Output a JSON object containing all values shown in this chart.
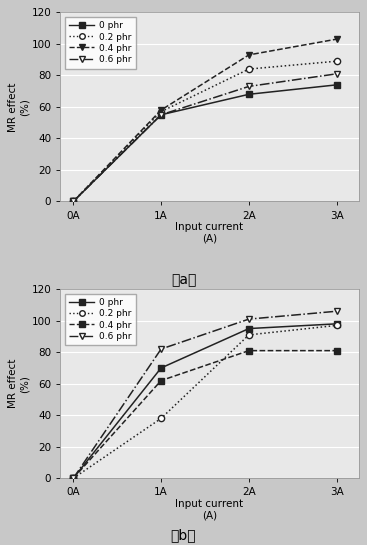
{
  "x_values": [
    0,
    1,
    2,
    3
  ],
  "x_tick_labels": [
    "0A",
    "1A",
    "2A",
    "3A"
  ],
  "ylabel": "MR effect\n(%)",
  "xlabel": "Input current\n(A)",
  "ylim": [
    0,
    120
  ],
  "yticks": [
    0,
    20,
    40,
    60,
    80,
    100,
    120
  ],
  "legend_labels": [
    "0 phr",
    "0.2 phr",
    "0.4 phr",
    "0.6 phr"
  ],
  "plot_bg_color": "#e8e8e8",
  "fig_bg_color": "#c8c8c8",
  "subplot_labels": [
    "（a）",
    "（b）"
  ],
  "chart_a": {
    "series": [
      {
        "y": [
          0,
          55,
          68,
          74
        ],
        "linestyle": "-",
        "marker": "s",
        "fillstyle": "full",
        "color": "#222222",
        "label": "0 phr"
      },
      {
        "y": [
          0,
          57,
          84,
          89
        ],
        "linestyle": ":",
        "marker": "o",
        "fillstyle": "none",
        "color": "#222222",
        "label": "0.2 phr"
      },
      {
        "y": [
          0,
          58,
          93,
          103
        ],
        "linestyle": "--",
        "marker": "v",
        "fillstyle": "full",
        "color": "#222222",
        "label": "0.4 phr"
      },
      {
        "y": [
          0,
          55,
          73,
          81
        ],
        "linestyle": "-.",
        "marker": "v",
        "fillstyle": "none",
        "color": "#222222",
        "label": "0.6 phr"
      }
    ]
  },
  "chart_b": {
    "series": [
      {
        "y": [
          0,
          70,
          95,
          98
        ],
        "linestyle": "-",
        "marker": "s",
        "fillstyle": "full",
        "color": "#222222",
        "label": "0 phr"
      },
      {
        "y": [
          0,
          38,
          91,
          97
        ],
        "linestyle": ":",
        "marker": "o",
        "fillstyle": "none",
        "color": "#222222",
        "label": "0.2 phr"
      },
      {
        "y": [
          0,
          62,
          81,
          81
        ],
        "linestyle": "--",
        "marker": "s",
        "fillstyle": "full",
        "color": "#222222",
        "label": "0.4 phr"
      },
      {
        "y": [
          0,
          82,
          101,
          106
        ],
        "linestyle": "-.",
        "marker": "v",
        "fillstyle": "none",
        "color": "#222222",
        "label": "0.6 phr"
      }
    ]
  }
}
